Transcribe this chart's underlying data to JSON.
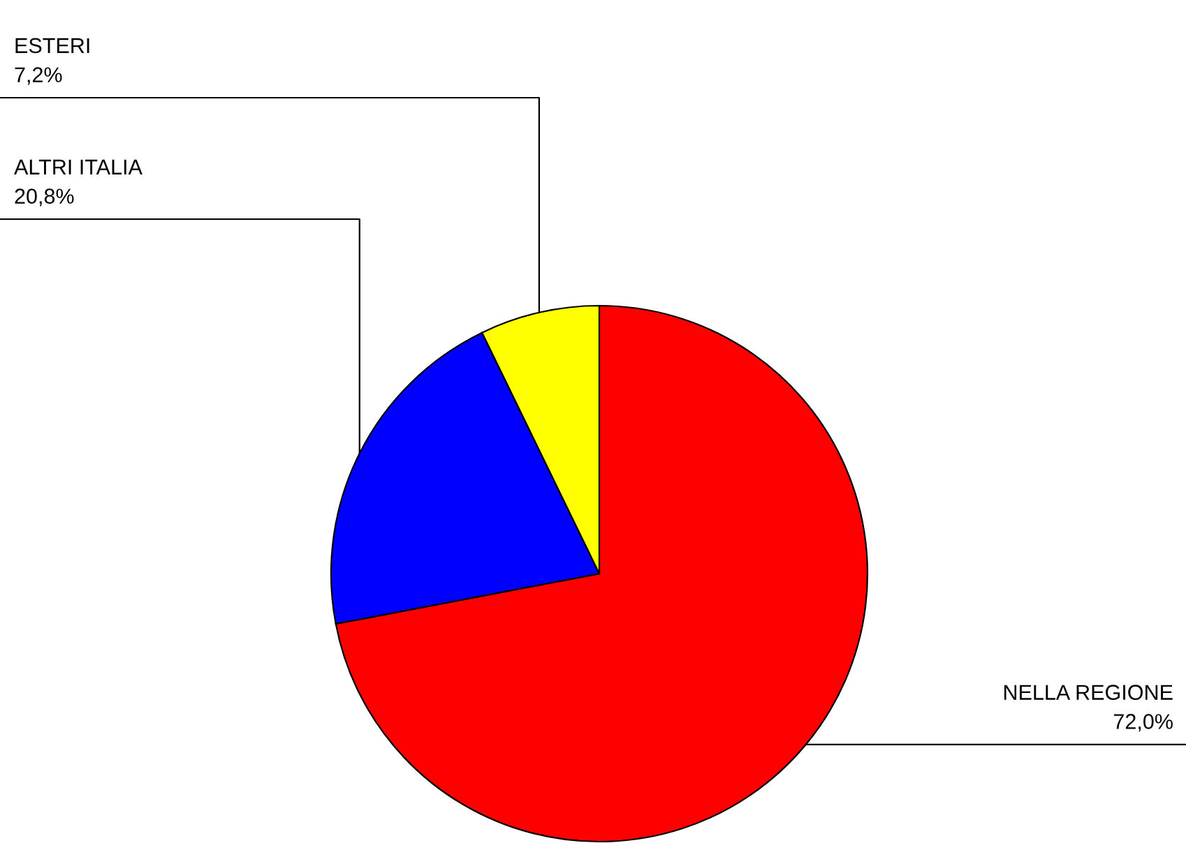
{
  "chart_data": {
    "type": "pie",
    "categories": [
      "NELLA REGIONE",
      "ALTRI ITALIA",
      "ESTERI"
    ],
    "values": [
      72.0,
      20.8,
      7.2
    ],
    "value_labels": [
      "72,0%",
      "20,8%",
      "7,2%"
    ],
    "colors": [
      "#ff0000",
      "#0000ff",
      "#ffff00"
    ]
  }
}
